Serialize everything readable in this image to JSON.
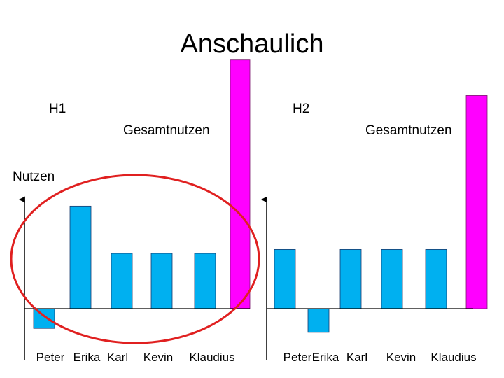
{
  "title": "Anschaulich",
  "labels": {
    "h1": "H1",
    "h2": "H2",
    "gesamtnutzen": "Gesamtnutzen",
    "nutzen": "Nutzen"
  },
  "colors": {
    "individual": "#00B0F0",
    "total": "#FF00FF",
    "circle": "#E02020"
  },
  "chart_data": [
    {
      "type": "bar",
      "name_label": "H1",
      "categories": [
        "Peter",
        "Erika",
        "Karl",
        "Kevin",
        "Klaudius"
      ],
      "values": [
        -1.0,
        5.2,
        2.8,
        2.8,
        2.8
      ],
      "total_label": "Gesamtnutzen",
      "total_value": 12.6,
      "ylabel": "Nutzen",
      "ylim": [
        -1.5,
        13
      ],
      "grid": false,
      "legend": "none",
      "annotation": "red ellipse around individual bars"
    },
    {
      "type": "bar",
      "name_label": "H2",
      "categories": [
        "Peter",
        "Erika",
        "Karl",
        "Kevin",
        "Klaudius"
      ],
      "values": [
        3.0,
        -1.2,
        3.0,
        3.0,
        3.0
      ],
      "total_label": "Gesamtnutzen",
      "total_value": 10.8,
      "ylabel": "",
      "ylim": [
        -1.5,
        13
      ],
      "grid": false,
      "legend": "none"
    }
  ]
}
